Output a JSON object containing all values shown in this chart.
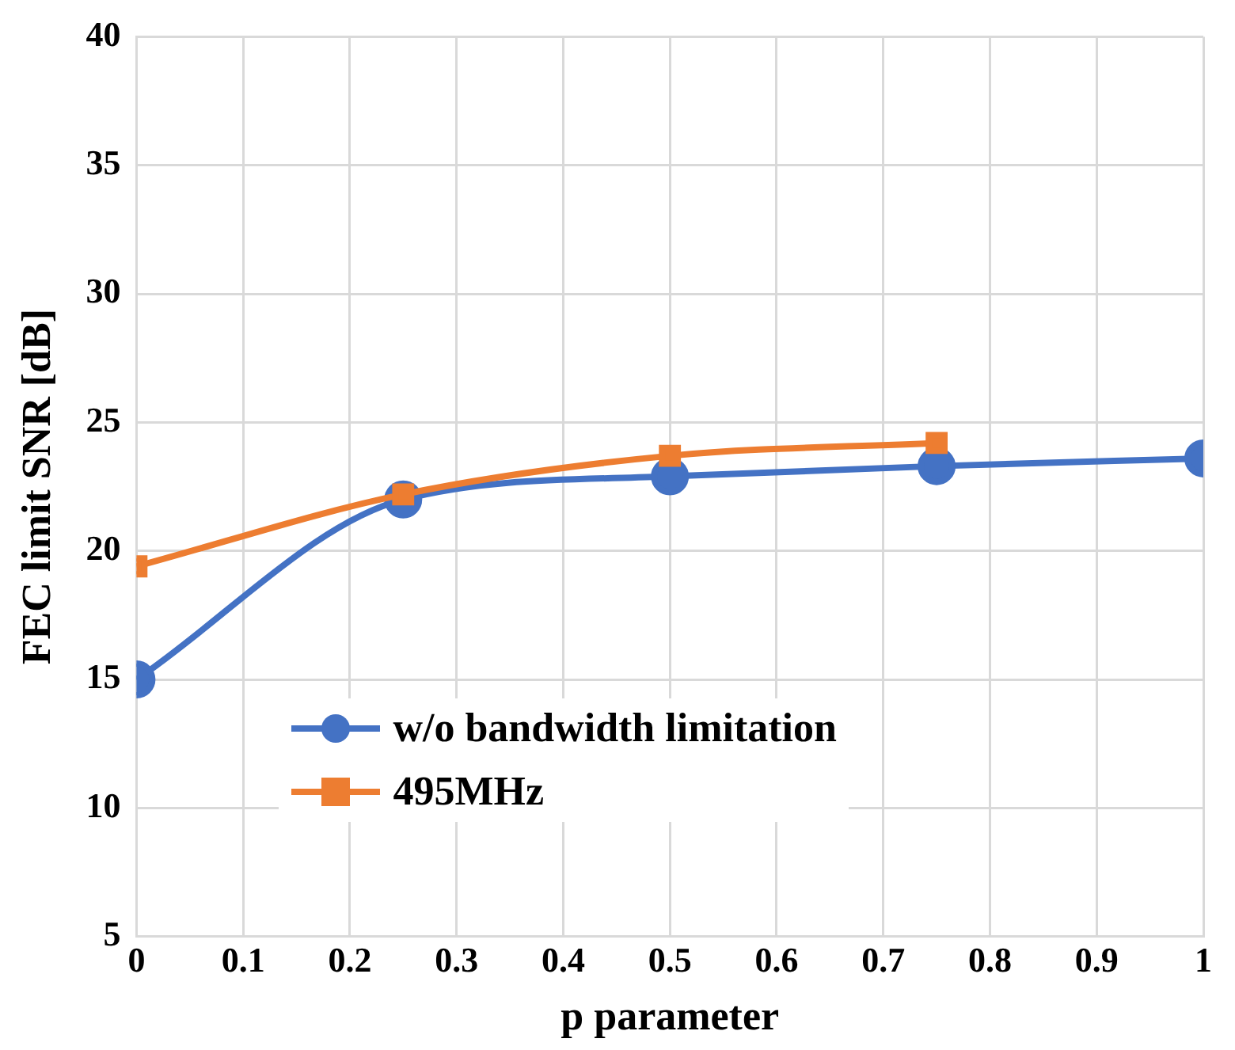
{
  "chart_data": {
    "type": "line",
    "xlabel": "p parameter",
    "ylabel": "FEC limit SNR [dB]",
    "xlim": [
      0,
      1
    ],
    "xticks": [
      0,
      0.1,
      0.2,
      0.3,
      0.4,
      0.5,
      0.6,
      0.7,
      0.8,
      0.9,
      1
    ],
    "ylim": [
      5,
      40
    ],
    "yticks": [
      5,
      10,
      15,
      20,
      25,
      30,
      35,
      40
    ],
    "grid": true,
    "legend": "bottom",
    "series": [
      {
        "name": "w/o bandwidth limitation",
        "color": "#4472c4",
        "marker": "circle",
        "x": [
          0,
          0.25,
          0.5,
          0.75,
          1
        ],
        "values": [
          15.0,
          22.0,
          22.9,
          23.3,
          23.6
        ]
      },
      {
        "name": "495MHz",
        "color": "#ed7d31",
        "marker": "square",
        "x": [
          0,
          0.25,
          0.5,
          0.75
        ],
        "values": [
          19.4,
          22.2,
          23.7,
          24.2
        ]
      }
    ]
  }
}
